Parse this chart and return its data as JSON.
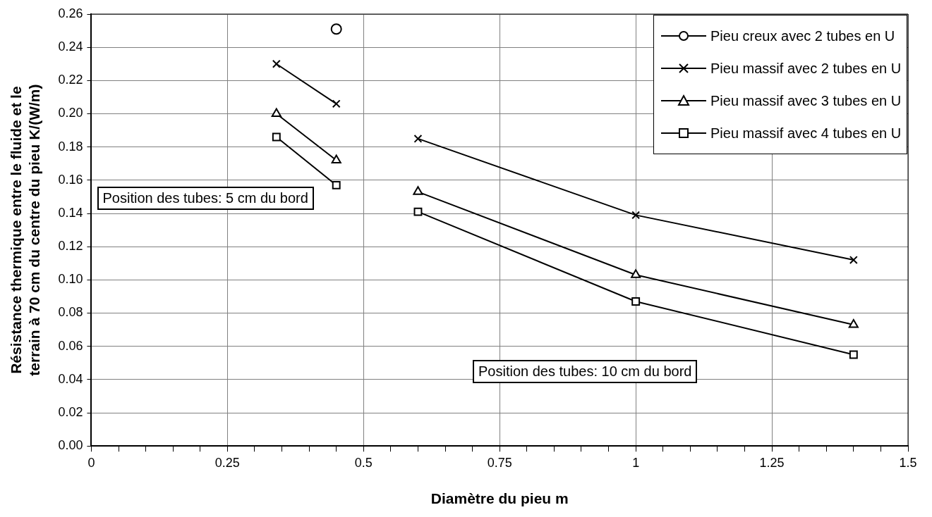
{
  "chart_data": {
    "type": "line",
    "xlabel": "Diamètre du pieu m",
    "ylabel": "Résistance thermique entre le fluide et le terrain à 70 cm du centre du pieu K/(W/m)",
    "xlim": [
      0,
      1.5
    ],
    "xticks": [
      0,
      {
        "value": 0.05,
        "label": null
      },
      {
        "value": 0.1,
        "label": null
      },
      {
        "value": 0.15,
        "label": null
      },
      {
        "value": 0.2,
        "label": null
      },
      0.25,
      {
        "value": 0.3,
        "label": null
      },
      {
        "value": 0.35,
        "label": null
      },
      {
        "value": 0.4,
        "label": null
      },
      {
        "value": 0.45,
        "label": null
      },
      0.5,
      {
        "value": 0.55,
        "label": null
      },
      {
        "value": 0.6,
        "label": null
      },
      {
        "value": 0.65,
        "label": null
      },
      {
        "value": 0.7,
        "label": null
      },
      0.75,
      {
        "value": 0.8,
        "label": null
      },
      {
        "value": 0.85,
        "label": null
      },
      {
        "value": 0.9,
        "label": null
      },
      {
        "value": 0.95,
        "label": null
      },
      1,
      {
        "value": 1.05,
        "label": null
      },
      {
        "value": 1.1,
        "label": null
      },
      {
        "value": 1.15,
        "label": null
      },
      {
        "value": 1.2,
        "label": null
      },
      1.25,
      {
        "value": 1.3,
        "label": null
      },
      {
        "value": 1.35,
        "label": null
      },
      {
        "value": 1.4,
        "label": null
      },
      {
        "value": 1.45,
        "label": null
      },
      1.5
    ],
    "ylim": [
      0,
      0.26
    ],
    "yticks": [
      {
        "value": 0,
        "label": "0.00"
      },
      {
        "value": 0.02,
        "label": "0.02"
      },
      {
        "value": 0.04,
        "label": "0.04"
      },
      {
        "value": 0.06,
        "label": "0.06"
      },
      {
        "value": 0.08,
        "label": "0.08"
      },
      {
        "value": 0.1,
        "label": "0.10"
      },
      {
        "value": 0.12,
        "label": "0.12"
      },
      {
        "value": 0.14,
        "label": "0.14"
      },
      {
        "value": 0.16,
        "label": "0.16"
      },
      {
        "value": 0.18,
        "label": "0.18"
      },
      {
        "value": 0.2,
        "label": "0.20"
      },
      {
        "value": 0.22,
        "label": "0.22"
      },
      {
        "value": 0.24,
        "label": "0.24"
      },
      {
        "value": 0.26,
        "label": "0.26"
      }
    ],
    "grid": true,
    "legend": "top right",
    "line_style": "solid",
    "series": [
      {
        "name": "Pieu creux avec 2 tubes en U",
        "color": "#000000",
        "marker": "circle",
        "x": [
          0.45
        ],
        "values": [
          0.251
        ]
      },
      {
        "name": "Pieu massif avec 2 tubes en U",
        "color": "#000000",
        "marker": "cross",
        "x": [
          0.34,
          0.45
        ],
        "values": [
          0.23,
          0.206
        ]
      },
      {
        "name": "Pieu massif avec 3 tubes en U",
        "color": "#000000",
        "marker": "triangle",
        "x": [
          0.34,
          0.45
        ],
        "values": [
          0.2,
          0.172
        ]
      },
      {
        "name": "Pieu massif avec 4 tubes en U",
        "color": "#000000",
        "marker": "square",
        "x": [
          0.34,
          0.45
        ],
        "values": [
          0.186,
          0.157
        ]
      },
      {
        "color": "#000000",
        "marker": "cross",
        "x": [
          0.6,
          1,
          1.4
        ],
        "values": [
          0.185,
          0.139,
          0.112
        ]
      },
      {
        "color": "#000000",
        "marker": "triangle",
        "x": [
          0.6,
          1,
          1.4
        ],
        "values": [
          0.153,
          0.103,
          0.073
        ]
      },
      {
        "color": "#000000",
        "marker": "square",
        "x": [
          0.6,
          1,
          1.4
        ],
        "values": [
          0.141,
          0.087,
          0.055
        ]
      }
    ],
    "annotations": [
      "Position des tubes: 5 cm du bord",
      "Position des tubes: 10 cm du bord"
    ]
  }
}
